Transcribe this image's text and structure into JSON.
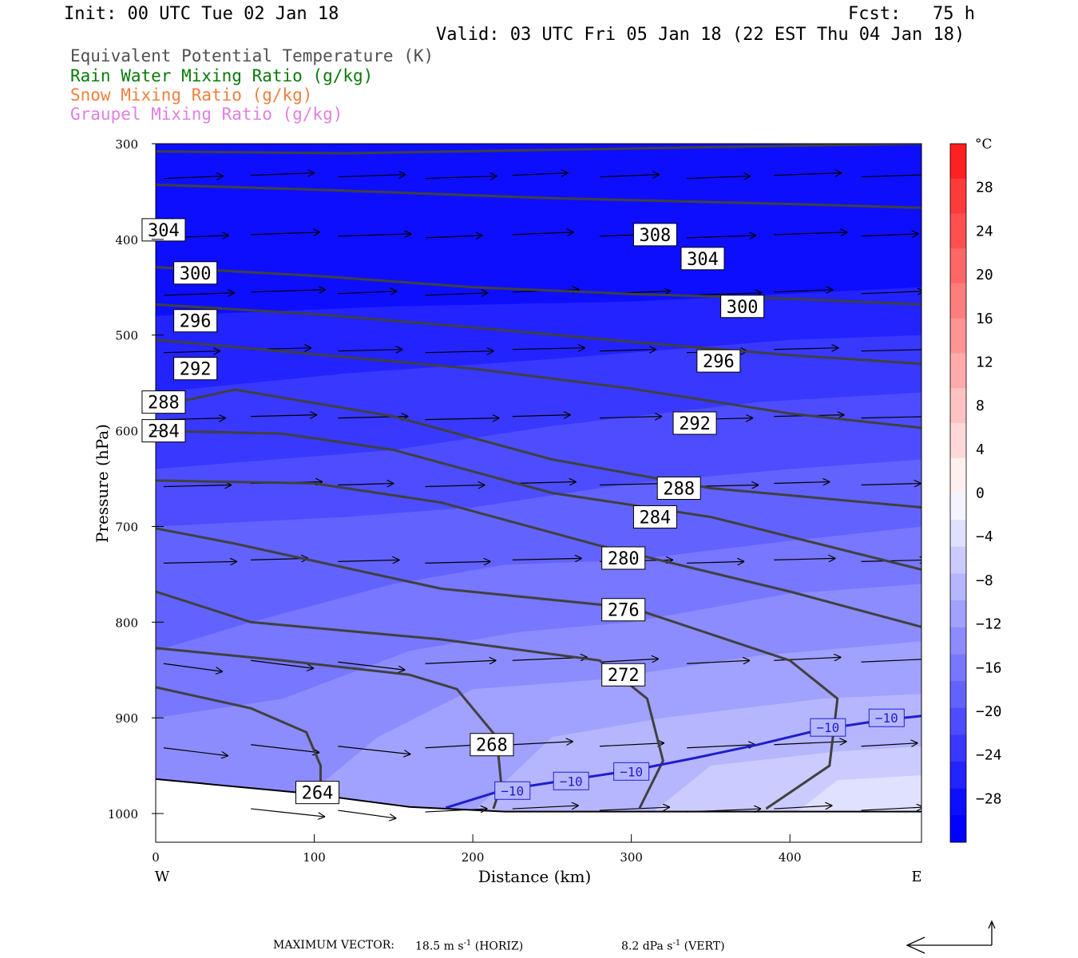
{
  "header": {
    "init": "Init: 00 UTC Tue 02 Jan 18",
    "fcst": "Fcst:   75 h",
    "valid": "Valid: 03 UTC Fri 05 Jan 18 (22 EST Thu 04 Jan 18)"
  },
  "legend": [
    {
      "label": "Equivalent Potential Temperature (K)",
      "color": "#505050"
    },
    {
      "label": "Rain Water Mixing Ratio (g/kg)",
      "color": "#0a7a0a"
    },
    {
      "label": "Snow Mixing Ratio (g/kg)",
      "color": "#f08040"
    },
    {
      "label": "Graupel Mixing Ratio (g/kg)",
      "color": "#e080e0"
    }
  ],
  "colorbar": {
    "unit": "°C",
    "labels": [
      "28",
      "24",
      "20",
      "16",
      "12",
      "8",
      "4",
      "0",
      "−4",
      "−8",
      "−12",
      "−16",
      "−20",
      "−24",
      "−28"
    ],
    "levels": [
      28,
      24,
      20,
      16,
      12,
      8,
      4,
      0,
      -4,
      -8,
      -12,
      -16,
      -20,
      -24,
      -28
    ],
    "colors_warm": [
      "#ff2020",
      "#ff3a3a",
      "#ff5050",
      "#ff6666",
      "#ff7d7d",
      "#ff9494",
      "#ffabab",
      "#ffc2c2",
      "#ffd9d9",
      "#fff0f0"
    ],
    "colors_cold": [
      "#f4f4ff",
      "#e0e0ff",
      "#cbcbff",
      "#b6b6ff",
      "#a1a1ff",
      "#8c8cff",
      "#7777ff",
      "#6262ff",
      "#4d4dff",
      "#3838ff",
      "#2323ff",
      "#0e0eff",
      "#0000ff"
    ]
  },
  "footer": {
    "label": "MAXIMUM VECTOR:",
    "horiz_value": "18.5 m s",
    "horiz_sup": "-1",
    "horiz_tag": " (HORIZ)",
    "vert_value": "8.2 dPa s",
    "vert_sup": "-1",
    "vert_tag": " (VERT)"
  },
  "chart_data": {
    "type": "cross-section",
    "xlabel": "Distance (km)",
    "ylabel": "Pressure (hPa)",
    "x_ticks": [
      0,
      100,
      200,
      300,
      400
    ],
    "y_ticks": [
      300,
      400,
      500,
      600,
      700,
      800,
      900,
      1000
    ],
    "xlim": [
      0,
      483
    ],
    "ylim": [
      300,
      1030
    ],
    "x_end_labels": {
      "left": "W",
      "right": "E"
    },
    "theta_e_contours": [
      {
        "value": 308,
        "label": "308",
        "points": [
          [
            0,
            308
          ],
          [
            120,
            310
          ],
          [
            300,
            305
          ],
          [
            483,
            300
          ]
        ]
      },
      {
        "value": 304,
        "label": "304",
        "points": [
          [
            0,
            343
          ],
          [
            100,
            348
          ],
          [
            250,
            357
          ],
          [
            400,
            363
          ],
          [
            483,
            367
          ]
        ]
      },
      {
        "value": 300,
        "label": "300",
        "points": [
          [
            0,
            429
          ],
          [
            100,
            438
          ],
          [
            200,
            450
          ],
          [
            300,
            457
          ],
          [
            400,
            462
          ],
          [
            483,
            468
          ]
        ]
      },
      {
        "value": 296,
        "label": "296",
        "points": [
          [
            0,
            468
          ],
          [
            100,
            478
          ],
          [
            200,
            492
          ],
          [
            300,
            507
          ],
          [
            400,
            521
          ],
          [
            483,
            530
          ]
        ]
      },
      {
        "value": 292,
        "label": "292",
        "points": [
          [
            0,
            505
          ],
          [
            100,
            520
          ],
          [
            200,
            535
          ],
          [
            300,
            556
          ],
          [
            400,
            582
          ],
          [
            483,
            597
          ]
        ]
      },
      {
        "value": 288,
        "label": "288",
        "points": [
          [
            0,
            575
          ],
          [
            50,
            557
          ],
          [
            150,
            585
          ],
          [
            250,
            630
          ],
          [
            350,
            660
          ],
          [
            483,
            680
          ]
        ]
      },
      {
        "value": 284,
        "label": "284",
        "points": [
          [
            0,
            600
          ],
          [
            80,
            603
          ],
          [
            150,
            620
          ],
          [
            250,
            665
          ],
          [
            350,
            690
          ],
          [
            483,
            745
          ]
        ]
      },
      {
        "value": 280,
        "label": "280",
        "points": [
          [
            0,
            652
          ],
          [
            100,
            655
          ],
          [
            180,
            675
          ],
          [
            280,
            720
          ],
          [
            400,
            768
          ],
          [
            483,
            805
          ]
        ]
      },
      {
        "value": 276,
        "label": "276",
        "points": [
          [
            0,
            702
          ],
          [
            50,
            718
          ],
          [
            180,
            765
          ],
          [
            300,
            785
          ],
          [
            400,
            840
          ],
          [
            430,
            880
          ],
          [
            425,
            950
          ],
          [
            385,
            995
          ]
        ]
      },
      {
        "value": 272,
        "label": "272",
        "points": [
          [
            0,
            768
          ],
          [
            60,
            800
          ],
          [
            180,
            818
          ],
          [
            280,
            840
          ],
          [
            310,
            880
          ],
          [
            320,
            945
          ],
          [
            305,
            995
          ]
        ]
      },
      {
        "value": 268,
        "label": "268",
        "points": [
          [
            0,
            827
          ],
          [
            80,
            840
          ],
          [
            160,
            855
          ],
          [
            190,
            870
          ],
          [
            215,
            920
          ],
          [
            218,
            970
          ],
          [
            213,
            995
          ]
        ]
      },
      {
        "value": 264,
        "label": "264",
        "points": [
          [
            0,
            868
          ],
          [
            60,
            890
          ],
          [
            95,
            915
          ],
          [
            104,
            950
          ],
          [
            104,
            968
          ]
        ]
      }
    ],
    "isotherm_minus10": {
      "label": "−10",
      "points": [
        [
          183,
          994
        ],
        [
          220,
          975
        ],
        [
          260,
          965
        ],
        [
          300,
          955
        ],
        [
          340,
          942
        ],
        [
          380,
          928
        ],
        [
          420,
          912
        ],
        [
          460,
          902
        ],
        [
          483,
          898
        ]
      ]
    },
    "ground_pressure": [
      [
        0,
        964
      ],
      [
        90,
        978
      ],
      [
        160,
        993
      ],
      [
        220,
        998
      ],
      [
        483,
        998
      ]
    ],
    "temperature_shading": "all values below 0 °C; coldest (below −28 °C) aloft, near −4 °C at surface east of 300 km"
  }
}
